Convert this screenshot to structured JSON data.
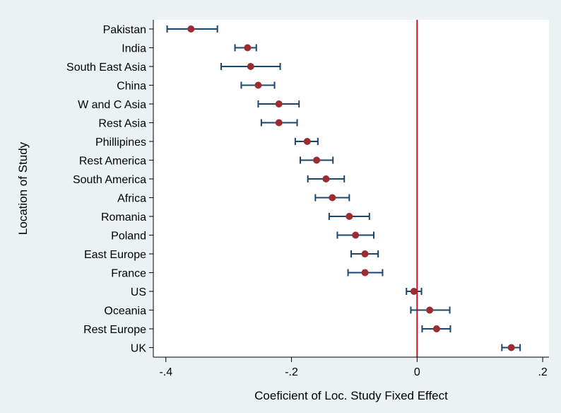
{
  "chart_data": {
    "type": "scatter",
    "subtype": "coefficient-plot-horizontal-error-bars",
    "title": "",
    "xlabel": "Coeficient of Loc. Study Fixed Effect",
    "ylabel": "Location of Study",
    "xlim": [
      -0.42,
      0.21
    ],
    "x_ticks": [
      -0.4,
      -0.2,
      0,
      0.2
    ],
    "x_tick_labels": [
      "-.4",
      "-.2",
      "0",
      ".2"
    ],
    "reference_line": {
      "x": 0,
      "color": "#c8102e"
    },
    "grid": false,
    "legend": "none",
    "colors": {
      "marker": "#9b2d30",
      "error_bar": "#1a476f",
      "plot_background": "#ffffff",
      "outer_background": "#eaf2f3"
    },
    "categories": [
      "Pakistan",
      "India",
      "South East Asia",
      "China",
      "W and C Asia",
      "Rest Asia",
      "Phillipines",
      "Rest America",
      "South America",
      "Africa",
      "Romania",
      "Poland",
      "East Europe",
      "France",
      "US",
      "Oceania",
      "Rest Europe",
      "UK"
    ],
    "estimate": [
      -0.36,
      -0.27,
      -0.265,
      -0.253,
      -0.22,
      -0.22,
      -0.175,
      -0.16,
      -0.145,
      -0.135,
      -0.108,
      -0.098,
      -0.083,
      -0.083,
      -0.005,
      0.02,
      0.031,
      0.15
    ],
    "ci_low": [
      -0.398,
      -0.29,
      -0.312,
      -0.28,
      -0.253,
      -0.248,
      -0.194,
      -0.186,
      -0.174,
      -0.162,
      -0.14,
      -0.127,
      -0.105,
      -0.11,
      -0.017,
      -0.01,
      0.008,
      0.135
    ],
    "ci_high": [
      -0.318,
      -0.256,
      -0.218,
      -0.227,
      -0.188,
      -0.191,
      -0.158,
      -0.134,
      -0.116,
      -0.108,
      -0.076,
      -0.069,
      -0.062,
      -0.055,
      0.007,
      0.052,
      0.053,
      0.164
    ]
  }
}
